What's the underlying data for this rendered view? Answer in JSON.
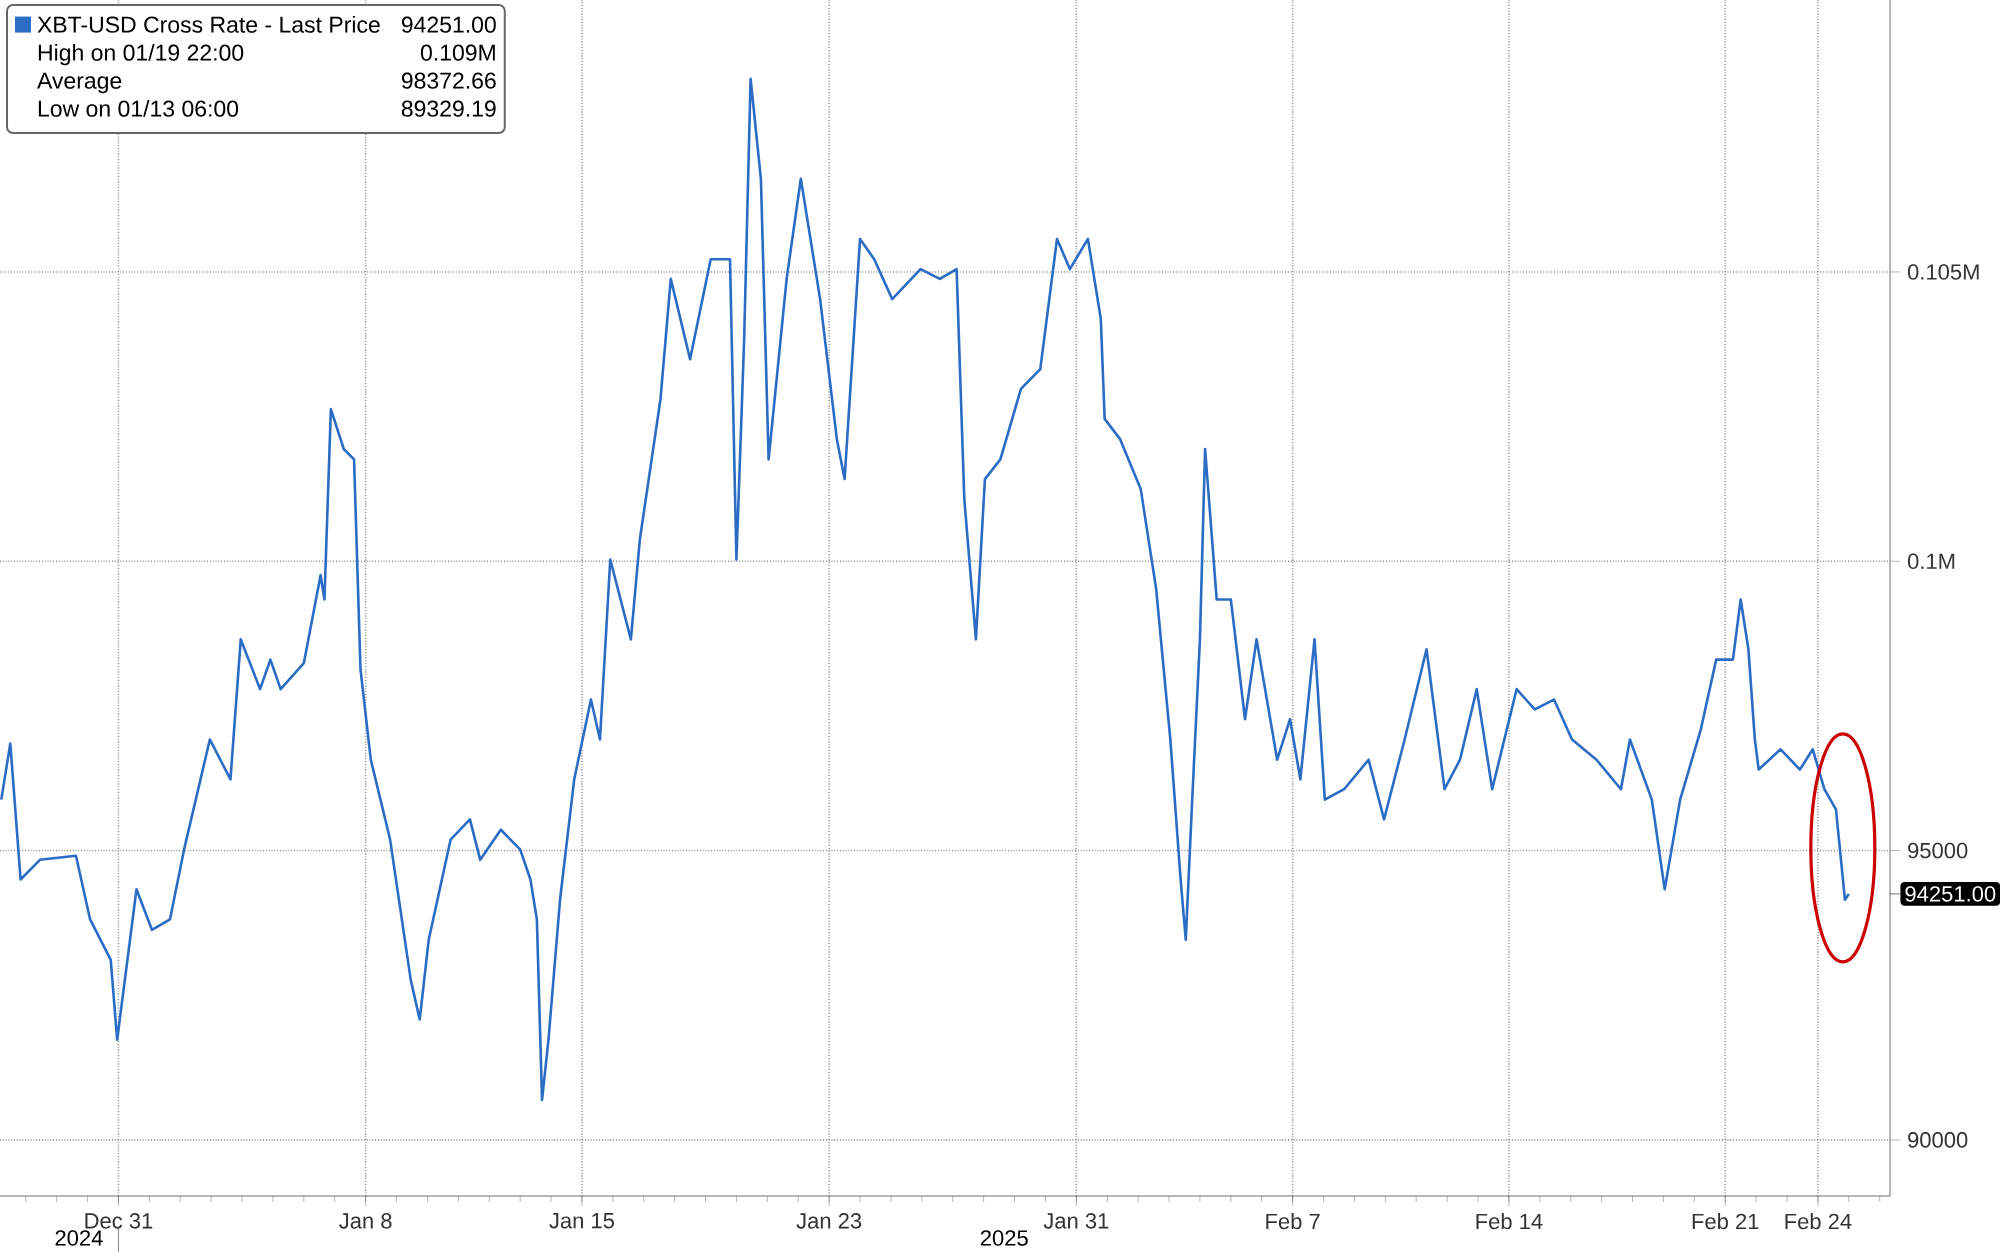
{
  "chart_data": {
    "type": "line",
    "x": [
      "2024-12-27T05:00",
      "2024-12-27T12:00",
      "2024-12-27T20:00",
      "2024-12-28T11:00",
      "2024-12-29T15:00",
      "2024-12-30T02:00",
      "2024-12-30T18:00",
      "2024-12-30T23:00",
      "2024-12-31T09:00",
      "2024-12-31T14:00",
      "2025-01-01T02:00",
      "2025-01-01T16:00",
      "2025-01-02T03:00",
      "2025-01-02T23:00",
      "2025-01-03T15:00",
      "2025-01-03T23:00",
      "2025-01-04T14:00",
      "2025-01-04T22:00",
      "2025-01-05T06:00",
      "2025-01-06T00:00",
      "2025-01-06T13:00",
      "2025-01-06T16:00",
      "2025-01-06T21:00",
      "2025-01-07T07:00",
      "2025-01-07T15:00",
      "2025-01-07T20:00",
      "2025-01-08T04:00",
      "2025-01-08T19:00",
      "2025-01-09T11:00",
      "2025-01-09T18:00",
      "2025-01-10T01:00",
      "2025-01-10T18:00",
      "2025-01-11T09:00",
      "2025-01-11T17:00",
      "2025-01-12T09:00",
      "2025-01-13T00:00",
      "2025-01-13T08:00",
      "2025-01-13T13:00",
      "2025-01-13T17:00",
      "2025-01-13T22:00",
      "2025-01-14T07:00",
      "2025-01-14T18:00",
      "2025-01-15T07:00",
      "2025-01-15T14:00",
      "2025-01-15T22:00",
      "2025-01-16T14:00",
      "2025-01-16T21:00",
      "2025-01-17T13:00",
      "2025-01-17T21:00",
      "2025-01-18T12:00",
      "2025-01-19T04:00",
      "2025-01-19T19:00",
      "2025-01-20T00:00",
      "2025-01-20T06:00",
      "2025-01-20T11:00",
      "2025-01-20T19:00",
      "2025-01-21T01:00",
      "2025-01-21T15:00",
      "2025-01-22T02:00",
      "2025-01-22T17:00",
      "2025-01-23T06:00",
      "2025-01-23T12:00",
      "2025-01-24T00:00",
      "2025-01-24T11:00",
      "2025-01-25T01:00",
      "2025-01-25T23:00",
      "2025-01-26T14:00",
      "2025-01-27T03:00",
      "2025-01-27T09:00",
      "2025-01-27T18:00",
      "2025-01-28T01:00",
      "2025-01-28T13:00",
      "2025-01-29T05:00",
      "2025-01-29T20:00",
      "2025-01-30T09:00",
      "2025-01-30T19:00",
      "2025-01-31T09:00",
      "2025-01-31T19:00",
      "2025-01-31T22:00",
      "2025-02-01T10:00",
      "2025-02-02T02:00",
      "2025-02-02T14:00",
      "2025-02-03T01:00",
      "2025-02-03T09:00",
      "2025-02-03T13:00",
      "2025-02-03T18:00",
      "2025-02-04T00:00",
      "2025-02-04T04:00",
      "2025-02-04T13:00",
      "2025-02-05T00:00",
      "2025-02-05T11:00",
      "2025-02-05T20:00",
      "2025-02-06T12:00",
      "2025-02-06T22:00",
      "2025-02-07T06:00",
      "2025-02-07T17:00",
      "2025-02-08T01:00",
      "2025-02-08T16:00",
      "2025-02-09T11:00",
      "2025-02-09T23:00",
      "2025-02-10T15:00",
      "2025-02-11T08:00",
      "2025-02-11T22:00",
      "2025-02-12T10:00",
      "2025-02-12T23:00",
      "2025-02-13T11:00",
      "2025-02-14T06:00",
      "2025-02-14T20:00",
      "2025-02-15T11:00",
      "2025-02-16T01:00",
      "2025-02-16T20:00",
      "2025-02-17T15:00",
      "2025-02-17T22:00",
      "2025-02-18T15:00",
      "2025-02-19T01:00",
      "2025-02-19T13:00",
      "2025-02-20T05:00",
      "2025-02-20T17:00",
      "2025-02-21T06:00",
      "2025-02-21T12:00",
      "2025-02-21T18:00",
      "2025-02-21T23:00",
      "2025-02-22T02:00",
      "2025-02-22T19:00",
      "2025-02-23T10:00",
      "2025-02-23T20:00",
      "2025-02-24T05:00",
      "2025-02-24T14:00",
      "2025-02-24T21:00",
      "2025-02-25T00:00"
    ],
    "series": [
      {
        "name": "XBT-USD Cross Rate - Last Price",
        "color": "#2b6cc4",
        "values": [
          95880,
          96850,
          94500,
          94840,
          94910,
          93810,
          93110,
          91730,
          93460,
          94330,
          93630,
          93810,
          95020,
          96920,
          96230,
          98650,
          97790,
          98300,
          97790,
          98240,
          99760,
          99340,
          102630,
          101940,
          101760,
          98130,
          96570,
          95190,
          92770,
          92080,
          93460,
          95190,
          95540,
          94840,
          95360,
          95020,
          94500,
          93810,
          90690,
          91730,
          94150,
          96230,
          97610,
          96920,
          100030,
          98650,
          100380,
          102800,
          104880,
          103490,
          105220,
          105220,
          100030,
          103840,
          108340,
          106610,
          101760,
          104880,
          106610,
          104530,
          102110,
          101420,
          105570,
          105220,
          104530,
          105050,
          104880,
          105050,
          101070,
          98650,
          101420,
          101760,
          102980,
          103320,
          105570,
          105050,
          105570,
          104190,
          102460,
          102110,
          101250,
          99520,
          96920,
          94500,
          93460,
          95880,
          98650,
          101940,
          99340,
          99340,
          97270,
          98650,
          96570,
          97270,
          96230,
          98650,
          95880,
          96060,
          96570,
          95540,
          96920,
          98480,
          96060,
          96570,
          97790,
          96060,
          97790,
          97440,
          97610,
          96920,
          96570,
          96060,
          96920,
          95880,
          94330,
          95880,
          97090,
          98300,
          98300,
          99340,
          98480,
          96920,
          96400,
          96750,
          96400,
          96750,
          96060,
          95710,
          94150,
          94251
        ]
      }
    ],
    "xlim": [
      "2024-12-27T04:00",
      "2025-02-26T08:00"
    ],
    "ylim": [
      89030,
      109700
    ],
    "xticks": [
      {
        "value": "2024-12-31",
        "label": "Dec 31"
      },
      {
        "value": "2025-01-08",
        "label": "Jan 8"
      },
      {
        "value": "2025-01-15",
        "label": "Jan 15"
      },
      {
        "value": "2025-01-23",
        "label": "Jan 23"
      },
      {
        "value": "2025-01-31",
        "label": "Jan 31"
      },
      {
        "value": "2025-02-07",
        "label": "Feb 7"
      },
      {
        "value": "2025-02-14",
        "label": "Feb 14"
      },
      {
        "value": "2025-02-21",
        "label": "Feb 21"
      },
      {
        "value": "2025-02-24",
        "label": "Feb 24"
      }
    ],
    "yticks": [
      90000,
      95000,
      {
        "value": 100000,
        "label": "0.1M"
      },
      {
        "value": 105000,
        "label": "0.105M"
      }
    ],
    "grid": true,
    "legend": "top left",
    "marker": "none",
    "annotations": [
      {
        "text": "94251.00",
        "x": "2025-02-25T00:00",
        "y": 94251
      },
      "94251.00",
      "High on 01/19 22:00",
      "0.109M",
      "Average",
      "98372.66",
      "Low on 01/13 06:00",
      "89329.19",
      "2024",
      "2025"
    ]
  }
}
